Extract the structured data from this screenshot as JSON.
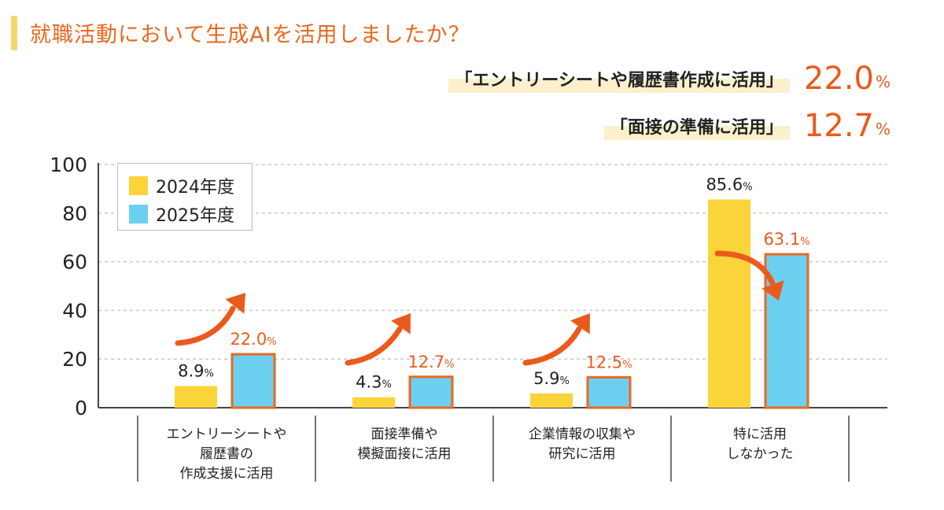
{
  "title": "就職活動において生成AIを活用しましたか？",
  "highlights": [
    {
      "label": "「エントリーシートや履歴書作成に活用」",
      "value": "22.0",
      "unit": "%"
    },
    {
      "label": "「面接の準備に活用」",
      "value": "12.7",
      "unit": "%"
    }
  ],
  "colors": {
    "accent": "#ea5a1c",
    "series2024": "#fbd43a",
    "series2025": "#6dcff0",
    "bar_border_2025": "#e8691e"
  },
  "chart_data": {
    "type": "bar",
    "ylim": [
      0,
      100
    ],
    "yticks": [
      "0",
      "20",
      "40",
      "60",
      "80",
      "100"
    ],
    "grid": true,
    "legend_position": "top-left",
    "categories": [
      [
        "エントリーシートや",
        "履歴書の",
        "作成支援に活用"
      ],
      [
        "面接準備や",
        "模擬面接に活用"
      ],
      [
        "企業情報の収集や",
        "研究に活用"
      ],
      [
        "特に活用",
        "しなかった"
      ]
    ],
    "series": [
      {
        "name": "2024年度",
        "values": [
          8.9,
          4.3,
          5.9,
          85.6
        ],
        "labels": [
          "8.9",
          "4.3",
          "5.9",
          "85.6"
        ]
      },
      {
        "name": "2025年度",
        "values": [
          22.0,
          12.7,
          12.5,
          63.1
        ],
        "labels": [
          "22.0",
          "12.7",
          "12.5",
          "63.1"
        ]
      }
    ],
    "unit": "%"
  }
}
